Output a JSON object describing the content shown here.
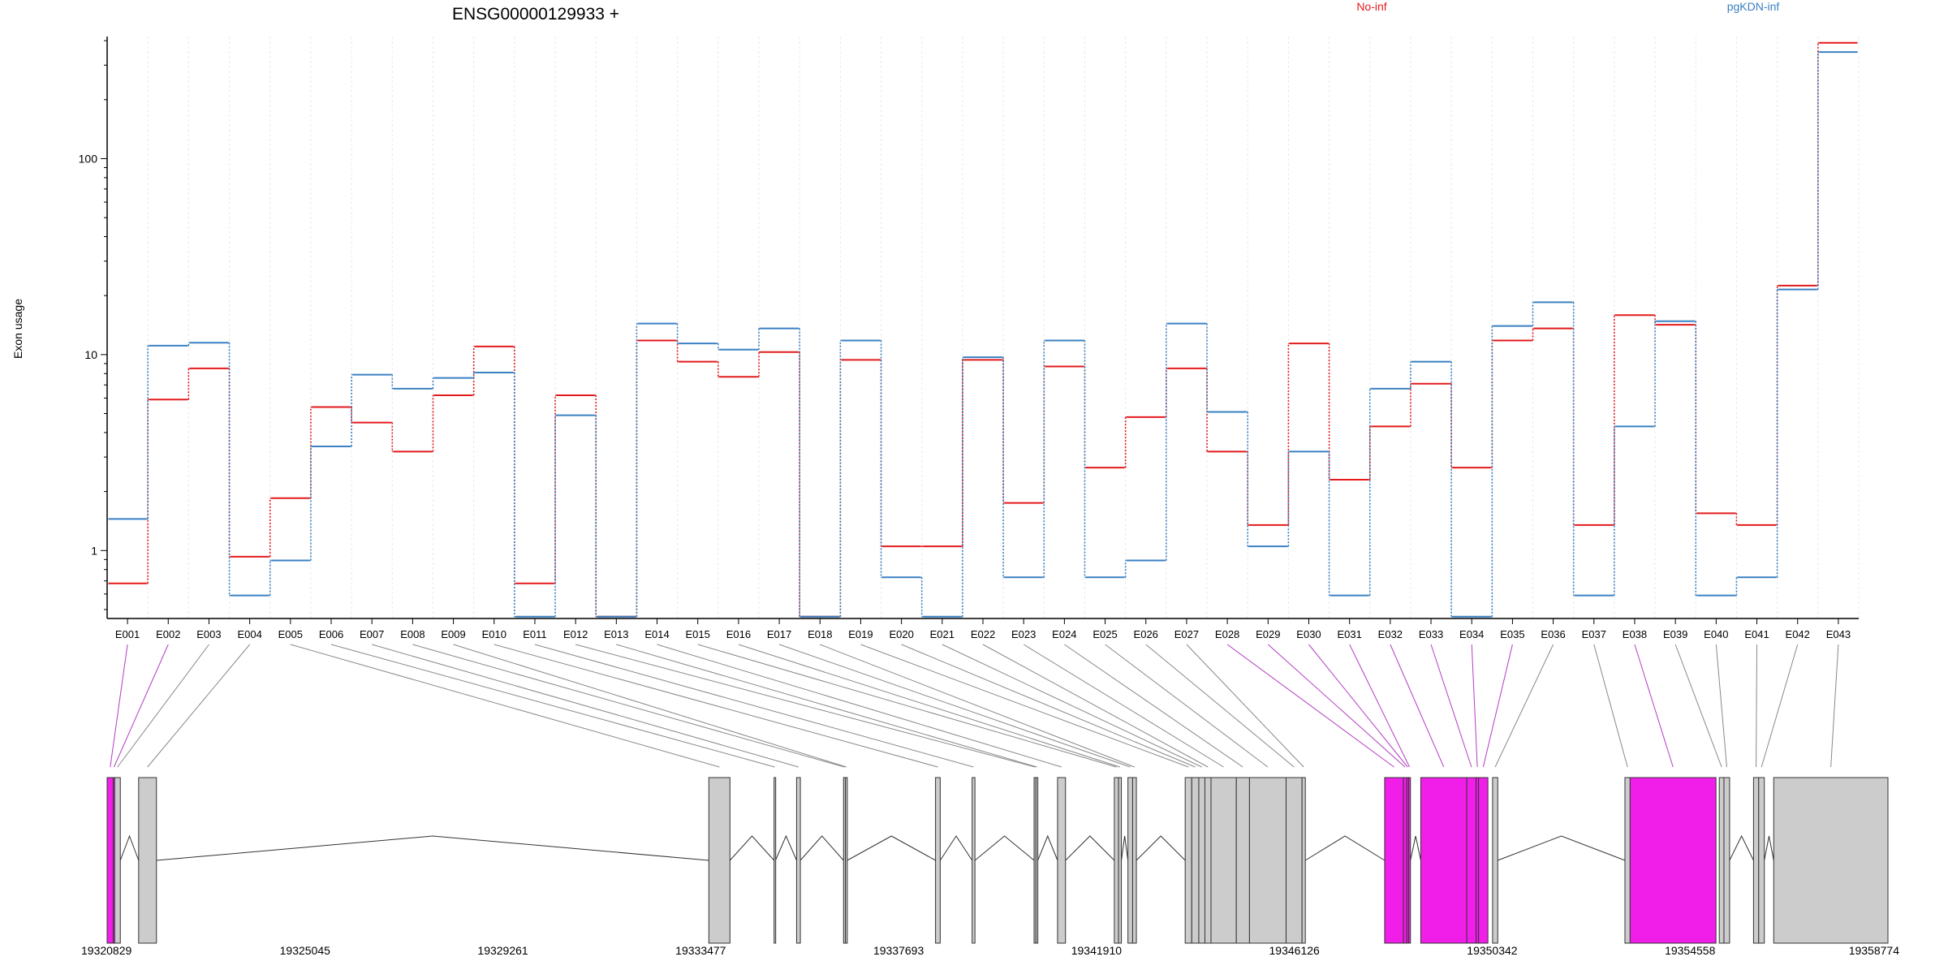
{
  "chart_data": {
    "type": "line",
    "title": "ENSG00000129933 +",
    "ylabel": "Exon usage",
    "xlabel": "",
    "y_scale": "log",
    "ylim": [
      0.45,
      420
    ],
    "y_ticks": [
      {
        "value": 1,
        "label": "1"
      },
      {
        "value": 10,
        "label": "10"
      },
      {
        "value": 100,
        "label": "100"
      }
    ],
    "grid": "vertical",
    "legend_position": "top",
    "categories": [
      "E001",
      "E002",
      "E003",
      "E004",
      "E005",
      "E006",
      "E007",
      "E008",
      "E009",
      "E010",
      "E011",
      "E012",
      "E013",
      "E014",
      "E015",
      "E016",
      "E017",
      "E018",
      "E019",
      "E020",
      "E021",
      "E022",
      "E023",
      "E024",
      "E025",
      "E026",
      "E027",
      "E028",
      "E029",
      "E030",
      "E031",
      "E032",
      "E033",
      "E034",
      "E035",
      "E036",
      "E037",
      "E038",
      "E039",
      "E040",
      "E041",
      "E042",
      "E043"
    ],
    "series": [
      {
        "name": "No-inf",
        "color": "#e31a1c",
        "values": [
          0.68,
          5.9,
          8.5,
          0.93,
          1.85,
          5.4,
          4.5,
          3.2,
          6.2,
          11.0,
          0.68,
          6.2,
          0.46,
          11.8,
          9.2,
          7.7,
          10.3,
          0.46,
          9.4,
          1.05,
          1.05,
          9.4,
          1.75,
          8.7,
          2.65,
          4.8,
          8.5,
          3.2,
          1.35,
          11.4,
          2.3,
          4.3,
          7.1,
          2.65,
          11.8,
          13.6,
          1.35,
          15.9,
          14.2,
          1.55,
          1.35,
          22.5,
          390.0
        ]
      },
      {
        "name": "pgKDN-inf",
        "color": "#3a80c2",
        "values": [
          1.45,
          11.1,
          11.5,
          0.59,
          0.89,
          3.4,
          7.9,
          6.7,
          7.6,
          8.1,
          0.46,
          4.9,
          0.46,
          14.4,
          11.4,
          10.6,
          13.6,
          0.46,
          11.8,
          0.73,
          0.46,
          9.7,
          0.73,
          11.8,
          0.73,
          0.89,
          14.4,
          5.1,
          1.05,
          3.2,
          0.59,
          6.7,
          9.2,
          0.46,
          14.0,
          18.5,
          0.59,
          4.3,
          14.8,
          0.59,
          0.73,
          21.5,
          350.0
        ]
      }
    ],
    "gene_model": {
      "genomic_ticks": [
        "19320829",
        "19325045",
        "19329261",
        "19333477",
        "19337693",
        "19341910",
        "19346126",
        "19350342",
        "19354558",
        "19358774"
      ],
      "genomic_range": [
        19320829,
        19358774
      ],
      "highlight_color": "#f01ee8",
      "exon_color": "#cccccc",
      "exons": [
        {
          "id": "E001",
          "start": 19320829,
          "end": 19320960,
          "hl": true
        },
        {
          "id": "E002",
          "start": 19320960,
          "end": 19320990,
          "hl": true
        },
        {
          "id": "E003",
          "start": 19320990,
          "end": 19321110,
          "hl": false
        },
        {
          "id": "E004",
          "start": 19321500,
          "end": 19321880,
          "hl": false
        },
        {
          "id": "E005",
          "start": 19333650,
          "end": 19334100,
          "hl": false
        },
        {
          "id": "E006",
          "start": 19335040,
          "end": 19335070,
          "hl": false
        },
        {
          "id": "E007",
          "start": 19335520,
          "end": 19335600,
          "hl": false
        },
        {
          "id": "E008",
          "start": 19336520,
          "end": 19336560,
          "hl": false
        },
        {
          "id": "E009",
          "start": 19336560,
          "end": 19336600,
          "hl": false
        },
        {
          "id": "E010",
          "start": 19338480,
          "end": 19338580,
          "hl": false
        },
        {
          "id": "E011",
          "start": 19339260,
          "end": 19339320,
          "hl": false
        },
        {
          "id": "E012",
          "start": 19340580,
          "end": 19340620,
          "hl": false
        },
        {
          "id": "E013",
          "start": 19340620,
          "end": 19340660,
          "hl": false
        },
        {
          "id": "E014",
          "start": 19341080,
          "end": 19341250,
          "hl": false
        },
        {
          "id": "E015",
          "start": 19342290,
          "end": 19342380,
          "hl": false
        },
        {
          "id": "E016",
          "start": 19342380,
          "end": 19342440,
          "hl": false
        },
        {
          "id": "E017",
          "start": 19342580,
          "end": 19342680,
          "hl": false
        },
        {
          "id": "E018",
          "start": 19342680,
          "end": 19342760,
          "hl": false
        },
        {
          "id": "E019",
          "start": 19343800,
          "end": 19343940,
          "hl": false
        },
        {
          "id": "E020",
          "start": 19343940,
          "end": 19344090,
          "hl": false
        },
        {
          "id": "E021",
          "start": 19344090,
          "end": 19344220,
          "hl": false
        },
        {
          "id": "E022",
          "start": 19344220,
          "end": 19344350,
          "hl": false
        },
        {
          "id": "E023",
          "start": 19344350,
          "end": 19344890,
          "hl": false
        },
        {
          "id": "E024",
          "start": 19344890,
          "end": 19345170,
          "hl": false
        },
        {
          "id": "E025",
          "start": 19345170,
          "end": 19345950,
          "hl": false
        },
        {
          "id": "E026",
          "start": 19345950,
          "end": 19346290,
          "hl": false
        },
        {
          "id": "E027",
          "start": 19346290,
          "end": 19346360,
          "hl": false
        },
        {
          "id": "E028",
          "start": 19348050,
          "end": 19348450,
          "hl": true
        },
        {
          "id": "E029",
          "start": 19348450,
          "end": 19348520,
          "hl": true
        },
        {
          "id": "E030",
          "start": 19348520,
          "end": 19348560,
          "hl": true
        },
        {
          "id": "E031",
          "start": 19348560,
          "end": 19348600,
          "hl": true
        },
        {
          "id": "E032",
          "start": 19348820,
          "end": 19349800,
          "hl": true
        },
        {
          "id": "E033",
          "start": 19349800,
          "end": 19350000,
          "hl": true
        },
        {
          "id": "E034",
          "start": 19350000,
          "end": 19350050,
          "hl": true
        },
        {
          "id": "E035",
          "start": 19350050,
          "end": 19350250,
          "hl": true
        },
        {
          "id": "E036",
          "start": 19350350,
          "end": 19350460,
          "hl": false
        },
        {
          "id": "E037",
          "start": 19353170,
          "end": 19353280,
          "hl": false
        },
        {
          "id": "E038",
          "start": 19353280,
          "end": 19355110,
          "hl": true
        },
        {
          "id": "E039",
          "start": 19355180,
          "end": 19355280,
          "hl": false
        },
        {
          "id": "E040",
          "start": 19355280,
          "end": 19355400,
          "hl": false
        },
        {
          "id": "E041",
          "start": 19355910,
          "end": 19356020,
          "hl": false
        },
        {
          "id": "E042",
          "start": 19356020,
          "end": 19356140,
          "hl": false
        },
        {
          "id": "E043",
          "start": 19356340,
          "end": 19358774,
          "hl": false
        }
      ]
    }
  }
}
